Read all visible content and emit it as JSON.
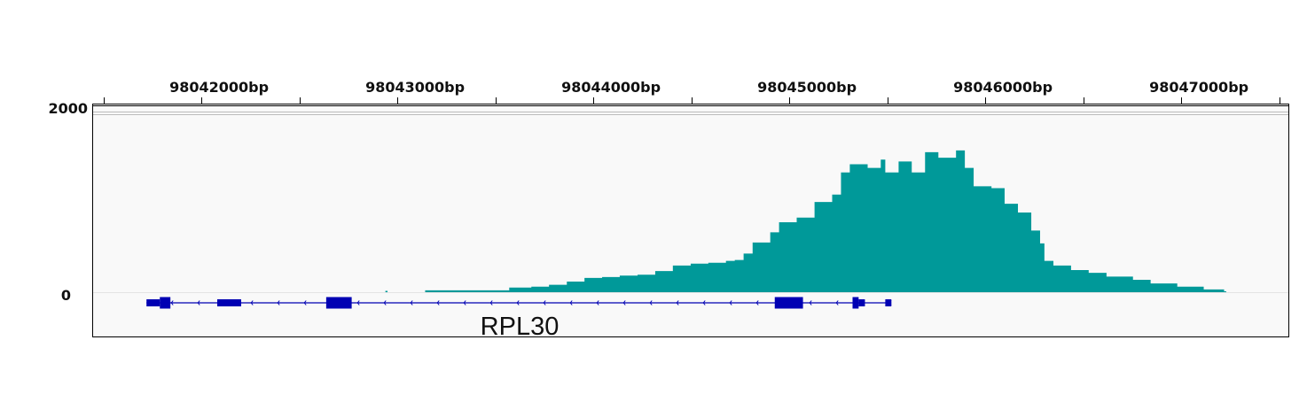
{
  "chart_data": {
    "type": "area",
    "title": "",
    "xlabel": "",
    "ylabel": "",
    "xlim": [
      98041443,
      98047547
    ],
    "ylim": [
      0,
      2000
    ],
    "x_tick_labels": [
      "98042000bp",
      "98043000bp",
      "98044000bp",
      "98045000bp",
      "98046000bp",
      "98047000bp"
    ],
    "x_ticks": [
      98042000,
      98043000,
      98044000,
      98045000,
      98046000,
      98047000
    ],
    "minor_tick_step": 500,
    "y_scale_labels": [
      "2000",
      "0"
    ],
    "coverage_color": "#009999",
    "coverage": [
      [
        98042930,
        0
      ],
      [
        98042939,
        15
      ],
      [
        98042950,
        0
      ],
      [
        98043142,
        0
      ],
      [
        98043142,
        20
      ],
      [
        98043571,
        20
      ],
      [
        98043571,
        50
      ],
      [
        98043684,
        60
      ],
      [
        98043774,
        80
      ],
      [
        98043865,
        115
      ],
      [
        98043955,
        155
      ],
      [
        98044045,
        165
      ],
      [
        98044135,
        180
      ],
      [
        98044226,
        190
      ],
      [
        98044316,
        230
      ],
      [
        98044406,
        290
      ],
      [
        98044497,
        310
      ],
      [
        98044587,
        320
      ],
      [
        98044677,
        340
      ],
      [
        98044722,
        350
      ],
      [
        98044767,
        420
      ],
      [
        98044813,
        540
      ],
      [
        98044903,
        650
      ],
      [
        98044948,
        760
      ],
      [
        98045038,
        810
      ],
      [
        98045129,
        980
      ],
      [
        98045219,
        1060
      ],
      [
        98045264,
        1300
      ],
      [
        98045309,
        1390
      ],
      [
        98045400,
        1350
      ],
      [
        98045467,
        1440
      ],
      [
        98045490,
        1300
      ],
      [
        98045558,
        1420
      ],
      [
        98045625,
        1300
      ],
      [
        98045693,
        1520
      ],
      [
        98045761,
        1460
      ],
      [
        98045851,
        1540
      ],
      [
        98045896,
        1350
      ],
      [
        98045941,
        1150
      ],
      [
        98046032,
        1130
      ],
      [
        98046099,
        960
      ],
      [
        98046167,
        865
      ],
      [
        98046235,
        670
      ],
      [
        98046280,
        530
      ],
      [
        98046302,
        340
      ],
      [
        98046348,
        290
      ],
      [
        98046438,
        240
      ],
      [
        98046528,
        210
      ],
      [
        98046619,
        170
      ],
      [
        98046754,
        135
      ],
      [
        98046844,
        95
      ],
      [
        98046980,
        60
      ],
      [
        98047115,
        30
      ],
      [
        98047219,
        10
      ],
      [
        98047230,
        0
      ]
    ],
    "gene": {
      "name": "RPL30",
      "strand": "-",
      "color": "#0000b3",
      "start": 98041720,
      "end": 98045521,
      "exons": [
        {
          "start": 98041720,
          "end": 98041788,
          "type": "utr"
        },
        {
          "start": 98041788,
          "end": 98041842,
          "type": "cds"
        },
        {
          "start": 98042081,
          "end": 98042203,
          "type": "utr"
        },
        {
          "start": 98042637,
          "end": 98042767,
          "type": "cds"
        },
        {
          "start": 98044926,
          "end": 98045070,
          "type": "cds"
        },
        {
          "start": 98045323,
          "end": 98045354,
          "type": "cds"
        },
        {
          "start": 98045354,
          "end": 98045386,
          "type": "utr"
        },
        {
          "start": 98045490,
          "end": 98045521,
          "type": "utr"
        }
      ]
    }
  }
}
